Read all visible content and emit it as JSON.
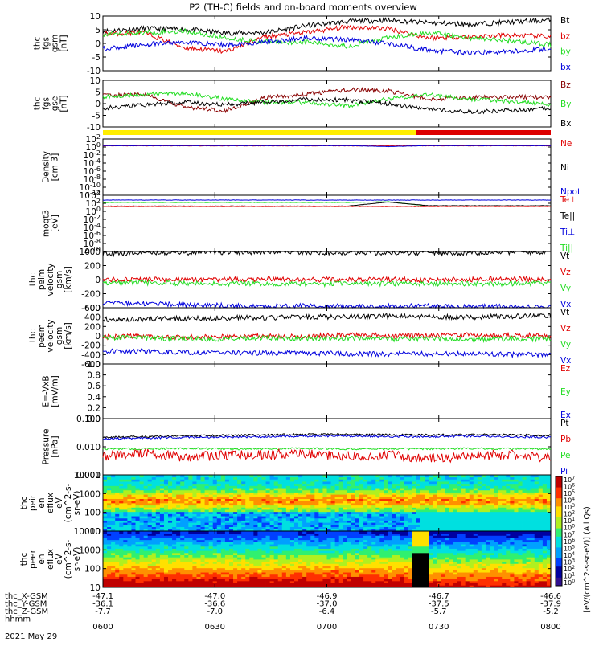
{
  "title": "P2 (TH-C) fields and on-board moments overview",
  "date_label": "2021 May 29",
  "chart_data": [
    {
      "type": "line",
      "ylabel": [
        "thc",
        "fgs",
        "gsm",
        "[nT]"
      ],
      "ylim": [
        -10,
        10
      ],
      "yticks": [
        "10",
        "5",
        "0",
        "-5",
        "-10"
      ],
      "legend": [
        {
          "name": "Bt",
          "color": "#000000"
        },
        {
          "name": "bz",
          "color": "#e00000"
        },
        {
          "name": "by",
          "color": "#22dd22"
        },
        {
          "name": "bx",
          "color": "#0000dd"
        }
      ],
      "series": [
        {
          "name": "Bt",
          "color": "#000000",
          "y": [
            4.5,
            5.5,
            5.2,
            3.8,
            4.0,
            6.5,
            8.0,
            8.5,
            7.5,
            7.0,
            7.8,
            8.5
          ]
        },
        {
          "name": "bz",
          "color": "#e00000",
          "y": [
            3.5,
            4.0,
            -1.5,
            -3.0,
            2.5,
            4.0,
            6.0,
            5.5,
            2.0,
            2.5,
            3.0,
            2.5
          ]
        },
        {
          "name": "by",
          "color": "#22dd22",
          "y": [
            3.0,
            4.0,
            4.5,
            2.0,
            0.5,
            0.5,
            -1.0,
            2.0,
            4.0,
            2.0,
            1.0,
            -0.5
          ]
        },
        {
          "name": "bx",
          "color": "#0000dd",
          "y": [
            -2.0,
            -0.5,
            0.5,
            -0.5,
            0.5,
            2.0,
            1.5,
            0.0,
            -2.5,
            -3.5,
            -3.0,
            -2.0
          ]
        }
      ]
    },
    {
      "type": "line",
      "ylabel": [
        "thc",
        "fgs",
        "gse",
        "[nT]"
      ],
      "ylim": [
        -10,
        10
      ],
      "yticks": [
        "10",
        "5",
        "0",
        "-5",
        "-10"
      ],
      "legend": [
        {
          "name": "Bz",
          "color": "#880000"
        },
        {
          "name": "By",
          "color": "#22dd22"
        },
        {
          "name": "Bx",
          "color": "#000000"
        }
      ],
      "series": [
        {
          "name": "Bz",
          "color": "#880000",
          "y": [
            3.5,
            4.0,
            -1.5,
            -3.0,
            2.5,
            4.0,
            6.0,
            5.5,
            2.0,
            2.5,
            3.0,
            2.5
          ]
        },
        {
          "name": "By",
          "color": "#22dd22",
          "y": [
            3.0,
            4.0,
            4.5,
            2.0,
            0.5,
            0.5,
            -1.0,
            2.0,
            4.0,
            2.0,
            1.0,
            -0.5
          ]
        },
        {
          "name": "Bx",
          "color": "#000000",
          "y": [
            -2.0,
            -0.5,
            0.5,
            -0.5,
            0.5,
            2.0,
            1.5,
            0.0,
            -2.5,
            -3.5,
            -3.0,
            -2.0
          ]
        }
      ]
    },
    {
      "type": "line",
      "ylabel": [
        "Density",
        "[cm-3]"
      ],
      "yscale": "log",
      "ylim": [
        -12,
        2
      ],
      "yticks": [
        "10^2",
        "10^0",
        "10^-2",
        "10^-4",
        "10^-6",
        "10^-8",
        "10^-10",
        "10^-12"
      ],
      "legend": [
        {
          "name": "Ne",
          "color": "#e00000"
        },
        {
          "name": "Ni",
          "color": "#000000"
        },
        {
          "name": "Npot",
          "color": "#0000dd"
        }
      ],
      "series": [
        {
          "name": "Ne",
          "color": "#e00000",
          "y": [
            0.3,
            0.3,
            0.3,
            0.3,
            0.3,
            0.3,
            0.3,
            0.3,
            0.3,
            0.3,
            0.3,
            0.3
          ]
        },
        {
          "name": "Npot",
          "color": "#0000dd",
          "y": [
            0.35,
            0.35,
            0.35,
            0.35,
            0.35,
            0.35,
            0.35,
            0.1,
            0.35,
            0.35,
            0.35,
            0.35
          ]
        }
      ]
    },
    {
      "type": "line",
      "ylabel": [
        "moqt3",
        "[eV]"
      ],
      "yscale": "log",
      "ylim": [
        -10,
        4
      ],
      "yticks": [
        "10^4",
        "10^2",
        "10^0",
        "10^-2",
        "10^-4",
        "10^-6",
        "10^-8",
        "10^-10"
      ],
      "legend": [
        {
          "name": "Te⊥",
          "color": "#e00000"
        },
        {
          "name": "Te||",
          "color": "#000000"
        },
        {
          "name": "Ti⊥",
          "color": "#0000dd"
        },
        {
          "name": "Ti||",
          "color": "#22dd22"
        }
      ],
      "series": [
        {
          "name": "Ti⊥",
          "color": "#0000dd",
          "y": [
            2.8,
            2.8,
            2.8,
            2.8,
            2.8,
            2.8,
            2.8,
            2.8,
            2.8,
            2.8,
            2.8,
            2.8
          ]
        },
        {
          "name": "Ti||",
          "color": "#22dd22",
          "y": [
            2.2,
            2.2,
            2.2,
            2.2,
            2.2,
            2.2,
            2.2,
            2.4,
            1.3,
            1.3,
            1.3,
            1.3
          ]
        },
        {
          "name": "Te||",
          "color": "#000000",
          "y": [
            1.3,
            1.3,
            1.3,
            1.3,
            1.3,
            1.3,
            1.3,
            2.3,
            1.4,
            1.4,
            1.4,
            1.4
          ]
        },
        {
          "name": "Te⊥",
          "color": "#e00000",
          "y": [
            1.2,
            1.2,
            1.2,
            1.2,
            1.2,
            1.2,
            1.2,
            1.2,
            1.2,
            1.2,
            1.2,
            1.2
          ]
        }
      ]
    },
    {
      "type": "line",
      "ylabel": [
        "thc",
        "peim",
        "velocity",
        "gsm",
        "[km/s]"
      ],
      "ylim": [
        -400,
        400
      ],
      "yticks": [
        "400",
        "200",
        "0",
        "-200",
        "-400"
      ],
      "legend": [
        {
          "name": "Vt",
          "color": "#000000"
        },
        {
          "name": "Vz",
          "color": "#e00000"
        },
        {
          "name": "Vy",
          "color": "#22dd22"
        },
        {
          "name": "Vx",
          "color": "#0000dd"
        }
      ],
      "series": [
        {
          "name": "Vt",
          "color": "#000000",
          "y": [
            370,
            380,
            385,
            390,
            395,
            390,
            380,
            385,
            380,
            375,
            390,
            395
          ]
        },
        {
          "name": "Vz",
          "color": "#e00000",
          "y": [
            0,
            5,
            0,
            0,
            10,
            0,
            0,
            5,
            -5,
            0,
            10,
            5
          ]
        },
        {
          "name": "Vy",
          "color": "#22dd22",
          "y": [
            -40,
            -45,
            -50,
            -55,
            -55,
            -60,
            -60,
            -60,
            -55,
            -60,
            -55,
            -55
          ]
        },
        {
          "name": "Vx",
          "color": "#0000dd",
          "y": [
            -330,
            -340,
            -360,
            -370,
            -380,
            -375,
            -380,
            -380,
            -375,
            -380,
            -385,
            -390
          ]
        }
      ]
    },
    {
      "type": "line",
      "ylabel": [
        "thc",
        "peem",
        "velocity",
        "gsm",
        "[km/s]"
      ],
      "ylim": [
        -600,
        600
      ],
      "yticks": [
        "600",
        "400",
        "200",
        "0",
        "-200",
        "-400",
        "-600"
      ],
      "legend": [
        {
          "name": "Vt",
          "color": "#000000"
        },
        {
          "name": "Vz",
          "color": "#e00000"
        },
        {
          "name": "Vy",
          "color": "#22dd22"
        },
        {
          "name": "Vx",
          "color": "#0000dd"
        }
      ],
      "series": [
        {
          "name": "Vt",
          "color": "#000000",
          "y": [
            350,
            360,
            370,
            380,
            390,
            400,
            410,
            420,
            410,
            400,
            420,
            430
          ]
        },
        {
          "name": "Vz",
          "color": "#e00000",
          "y": [
            -20,
            -10,
            -30,
            -20,
            0,
            -10,
            20,
            0,
            10,
            20,
            10,
            0
          ]
        },
        {
          "name": "Vy",
          "color": "#22dd22",
          "y": [
            -50,
            -40,
            -60,
            -70,
            -40,
            -60,
            -50,
            -70,
            -60,
            -80,
            -70,
            -60
          ]
        },
        {
          "name": "Vx",
          "color": "#0000dd",
          "y": [
            -320,
            -330,
            -350,
            -360,
            -370,
            -370,
            -380,
            -390,
            -380,
            -380,
            -400,
            -400
          ]
        }
      ]
    },
    {
      "type": "line",
      "ylabel": [
        "E=-VxB",
        "[mV/m]"
      ],
      "ylim": [
        0,
        1
      ],
      "yticks": [
        "1.0",
        "0.8",
        "0.6",
        "0.4",
        "0.2",
        "0.0"
      ],
      "legend": [
        {
          "name": "Ez",
          "color": "#e00000"
        },
        {
          "name": "Ey",
          "color": "#22dd22"
        },
        {
          "name": "Ex",
          "color": "#0000dd"
        }
      ],
      "series": []
    },
    {
      "type": "line",
      "ylabel": [
        "Pressure",
        "[nPa]"
      ],
      "yscale": "log",
      "ylim": [
        -3.3,
        0.15
      ],
      "yticks": [
        "0.100",
        "0.010",
        "0.001"
      ],
      "legend": [
        {
          "name": "Pt",
          "color": "#000000"
        },
        {
          "name": "Pb",
          "color": "#e00000"
        },
        {
          "name": "Pe",
          "color": "#22dd22"
        },
        {
          "name": "Pi",
          "color": "#0000dd"
        }
      ],
      "series": [
        {
          "name": "Pt",
          "color": "#000000",
          "y": [
            0.1,
            0.11,
            0.12,
            0.13,
            0.14,
            0.15,
            0.15,
            0.14,
            0.14,
            0.15,
            0.14,
            0.13
          ]
        },
        {
          "name": "Pi",
          "color": "#0000dd",
          "y": [
            0.08,
            0.09,
            0.1,
            0.1,
            0.11,
            0.12,
            0.12,
            0.11,
            0.11,
            0.12,
            0.11,
            0.1
          ]
        },
        {
          "name": "Pe",
          "color": "#22dd22",
          "y": [
            0.02,
            0.02,
            0.021,
            0.02,
            0.02,
            0.021,
            0.02,
            0.02,
            0.02,
            0.021,
            0.02,
            0.02
          ]
        },
        {
          "name": "Pb",
          "color": "#e00000",
          "y": [
            0.007,
            0.01,
            0.006,
            0.008,
            0.009,
            0.01,
            0.007,
            0.008,
            0.005,
            0.007,
            0.009,
            0.005
          ]
        }
      ]
    },
    {
      "type": "heatmap",
      "ylabel": [
        "thc",
        "peir",
        "en",
        "eflux",
        "eV",
        "(cm^2-s-",
        "sr-eV)"
      ],
      "yscale": "log",
      "ylim": [
        0.7,
        4.35
      ],
      "yticks": [
        "10000",
        "1000",
        "100",
        "10"
      ],
      "colorbar_label": "[eV/(cm^2-s-sr-eV)] (All Qs)"
    },
    {
      "type": "heatmap",
      "ylabel": [
        "thc",
        "peer",
        "en",
        "eflux",
        "eV",
        "(cm^2-s-",
        "sr-eV)"
      ],
      "yscale": "log",
      "ylim": [
        0.7,
        4.35
      ],
      "yticks": [
        "10000",
        "1000",
        "100",
        "10"
      ],
      "colorbar_ticks": [
        "10^7",
        "10^6",
        "10^5",
        "10^4",
        "10^3",
        "10^2",
        "10^1",
        "10^0",
        "10^7",
        "10^6",
        "10^5",
        "10^4",
        "10^3",
        "10^2",
        "10^1",
        "10^0"
      ]
    }
  ],
  "x_axis": {
    "time_ticks": [
      "0600",
      "0630",
      "0700",
      "0730",
      "0800"
    ],
    "rows": [
      {
        "label": "thc_X-GSM",
        "values": [
          "-47.1",
          "-47.0",
          "-46.9",
          "-46.7",
          "-46.6"
        ]
      },
      {
        "label": "thc_Y-GSM",
        "values": [
          "-36.1",
          "-36.6",
          "-37.0",
          "-37.5",
          "-37.9"
        ]
      },
      {
        "label": "thc_Z-GSM",
        "values": [
          "-7.7",
          "-7.0",
          "-6.4",
          "-5.7",
          "-5.2"
        ]
      },
      {
        "label": "hhmm",
        "values": []
      }
    ]
  },
  "status_bar": {
    "yellow_until_fraction": 0.7,
    "colors": [
      "#ffee00",
      "#dd0000"
    ]
  }
}
